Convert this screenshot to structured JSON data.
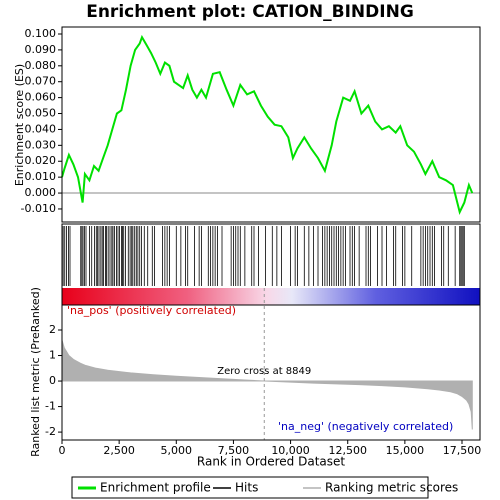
{
  "chart_data": [
    {
      "type": "line",
      "title": "Enrichment plot: CATION_BINDING",
      "ylabel": "Enrichment score (ES)",
      "x": [
        0,
        100,
        300,
        500,
        700,
        900,
        1000,
        1200,
        1400,
        1600,
        1800,
        2000,
        2200,
        2400,
        2600,
        2800,
        3000,
        3200,
        3400,
        3500,
        3700,
        3900,
        4100,
        4300,
        4500,
        4700,
        4900,
        5100,
        5300,
        5500,
        5700,
        5900,
        6100,
        6300,
        6600,
        6900,
        7200,
        7500,
        7800,
        8100,
        8400,
        8700,
        9000,
        9300,
        9600,
        9900,
        10100,
        10300,
        10600,
        10900,
        11200,
        11500,
        11800,
        12000,
        12300,
        12600,
        12800,
        13100,
        13400,
        13700,
        14000,
        14300,
        14600,
        14800,
        15100,
        15400,
        15700,
        15900,
        16200,
        16500,
        16800,
        17100,
        17400,
        17600,
        17800,
        17950
      ],
      "series": [
        {
          "name": "Enrichment profile",
          "color": "#00e000",
          "values": [
            0.01,
            0.015,
            0.024,
            0.018,
            0.01,
            -0.006,
            0.012,
            0.008,
            0.017,
            0.014,
            0.022,
            0.03,
            0.04,
            0.05,
            0.052,
            0.065,
            0.08,
            0.09,
            0.094,
            0.098,
            0.093,
            0.088,
            0.082,
            0.075,
            0.082,
            0.08,
            0.07,
            0.068,
            0.066,
            0.074,
            0.065,
            0.06,
            0.065,
            0.06,
            0.075,
            0.076,
            0.065,
            0.055,
            0.068,
            0.062,
            0.064,
            0.055,
            0.048,
            0.043,
            0.042,
            0.035,
            0.022,
            0.028,
            0.035,
            0.028,
            0.022,
            0.014,
            0.03,
            0.045,
            0.06,
            0.058,
            0.064,
            0.05,
            0.055,
            0.045,
            0.04,
            0.042,
            0.038,
            0.042,
            0.03,
            0.026,
            0.018,
            0.012,
            0.02,
            0.01,
            0.008,
            0.005,
            -0.012,
            -0.006,
            0.005,
            0.0
          ]
        }
      ],
      "xlim": [
        0,
        18287
      ],
      "ylim": [
        -0.0182,
        0.1044
      ],
      "yticks": [
        {
          "value": -0.01,
          "label": "-0.010"
        },
        {
          "value": 0,
          "label": "0.000"
        },
        {
          "value": 0.01,
          "label": "0.010"
        },
        {
          "value": 0.02,
          "label": "0.020"
        },
        {
          "value": 0.03,
          "label": "0.030"
        },
        {
          "value": 0.04,
          "label": "0.040"
        },
        {
          "value": 0.05,
          "label": "0.050"
        },
        {
          "value": 0.06,
          "label": "0.060"
        },
        {
          "value": 0.07,
          "label": "0.070"
        },
        {
          "value": 0.08,
          "label": "0.080"
        },
        {
          "value": 0.09,
          "label": "0.090"
        },
        {
          "value": 0.1,
          "label": "0.100"
        }
      ]
    },
    {
      "type": "rug",
      "xlim": [
        0,
        18287
      ],
      "series": [
        {
          "name": "Hits",
          "color": "#000000",
          "x": [
            50,
            120,
            200,
            280,
            350,
            820,
            870,
            920,
            980,
            1050,
            1200,
            1300,
            1420,
            1500,
            1560,
            1620,
            1700,
            1760,
            1820,
            1900,
            1950,
            2020,
            2100,
            2180,
            2230,
            2300,
            2380,
            2450,
            2520,
            2600,
            2650,
            2700,
            2780,
            2900,
            2980,
            3050,
            3100,
            3180,
            3250,
            3320,
            3400,
            3480,
            3600,
            3750,
            3950,
            4050,
            4400,
            4500,
            4600,
            4700,
            5000,
            5200,
            5400,
            5500,
            5800,
            6000,
            6100,
            6400,
            6500,
            6600,
            6700,
            6800,
            7000,
            7400,
            7500,
            7600,
            7700,
            7800,
            8000,
            8300,
            8400,
            8600,
            8900,
            9200,
            9400,
            9600,
            10000,
            10200,
            10300,
            10600,
            10800,
            11000,
            11200,
            11400,
            11500,
            11600,
            11700,
            11800,
            11900,
            12000,
            12100,
            12200,
            12300,
            12400,
            12600,
            12700,
            12800,
            13000,
            13300,
            13400,
            13500,
            13800,
            14000,
            14200,
            14500,
            14600,
            14900,
            15000,
            15300,
            15700,
            15800,
            15900,
            16000,
            16100,
            16200,
            16300,
            16600,
            16700,
            16900,
            17200,
            17400,
            17450,
            17500,
            17550,
            17600
          ]
        }
      ]
    },
    {
      "type": "area",
      "xlabel": "Rank in Ordered Dataset",
      "ylabel": "Ranked list metric (PreRanked)",
      "x": [
        0,
        100,
        300,
        500,
        800,
        1000,
        1500,
        2000,
        3000,
        4000,
        5000,
        6000,
        7000,
        8000,
        8849,
        10000,
        11000,
        12000,
        13000,
        14000,
        15000,
        16000,
        16500,
        17000,
        17300,
        17500,
        17700,
        17800,
        17900,
        17950
      ],
      "series": [
        {
          "name": "Ranking metric scores",
          "color": "#b0b0b0",
          "values": [
            1.6,
            1.3,
            1.0,
            0.85,
            0.7,
            0.62,
            0.5,
            0.42,
            0.32,
            0.25,
            0.19,
            0.14,
            0.09,
            0.04,
            0,
            -0.04,
            -0.08,
            -0.11,
            -0.14,
            -0.18,
            -0.23,
            -0.3,
            -0.35,
            -0.42,
            -0.5,
            -0.6,
            -0.75,
            -0.9,
            -1.2,
            -1.9
          ]
        }
      ],
      "xlim": [
        0,
        18287
      ],
      "ylim": [
        -2.31,
        2.98
      ],
      "yticks": [
        -2,
        -1,
        0,
        1,
        2
      ],
      "xticks": [
        0,
        {
          "value": 2500,
          "label": "2,500"
        },
        {
          "value": 5000,
          "label": "5,000"
        },
        {
          "value": 7500,
          "label": "7,500"
        },
        {
          "value": 10000,
          "label": "10,000"
        },
        {
          "value": 12500,
          "label": "12,500"
        },
        {
          "value": 15000,
          "label": "15,000"
        },
        {
          "value": 17500,
          "label": "17,500"
        }
      ],
      "zero_cross": 8849,
      "annotations": {
        "pos": "'na_pos' (positively correlated)",
        "zero": "Zero cross at 8849",
        "neg": "'na_neg' (negatively correlated)"
      }
    }
  ]
}
